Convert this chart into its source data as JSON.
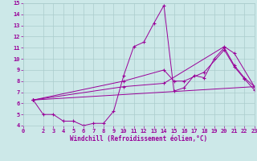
{
  "background_color": "#cce8e8",
  "grid_color": "#aacccc",
  "line_color": "#990099",
  "xlabel": "Windchill (Refroidissement éolien,°C)",
  "xlim": [
    0,
    23
  ],
  "ylim": [
    4,
    15
  ],
  "xticks": [
    0,
    2,
    3,
    4,
    5,
    6,
    7,
    8,
    9,
    10,
    11,
    12,
    13,
    14,
    15,
    16,
    17,
    18,
    19,
    20,
    21,
    22,
    23
  ],
  "yticks": [
    4,
    5,
    6,
    7,
    8,
    9,
    10,
    11,
    12,
    13,
    14,
    15
  ],
  "series": [
    {
      "x": [
        1,
        2,
        3,
        4,
        5,
        6,
        7,
        8,
        9,
        10,
        11,
        12,
        13,
        14,
        15,
        16,
        17,
        18,
        19,
        20,
        21,
        22,
        23
      ],
      "y": [
        6.3,
        5.0,
        5.0,
        4.4,
        4.4,
        4.0,
        4.2,
        4.2,
        5.3,
        8.5,
        11.1,
        11.5,
        13.2,
        14.8,
        7.1,
        7.4,
        8.5,
        8.3,
        10.0,
        11.0,
        9.4,
        8.3,
        7.5
      ]
    },
    {
      "x": [
        1,
        23
      ],
      "y": [
        6.3,
        7.5
      ]
    },
    {
      "x": [
        1,
        10,
        14,
        15,
        16,
        18,
        20,
        21,
        22,
        23
      ],
      "y": [
        6.3,
        8.0,
        9.0,
        8.0,
        8.0,
        8.8,
        10.8,
        9.3,
        8.2,
        7.2
      ]
    },
    {
      "x": [
        1,
        10,
        14,
        20,
        21,
        23
      ],
      "y": [
        6.3,
        7.5,
        7.8,
        11.1,
        10.5,
        7.5
      ]
    }
  ],
  "tick_fontsize": 5.0,
  "xlabel_fontsize": 5.5
}
